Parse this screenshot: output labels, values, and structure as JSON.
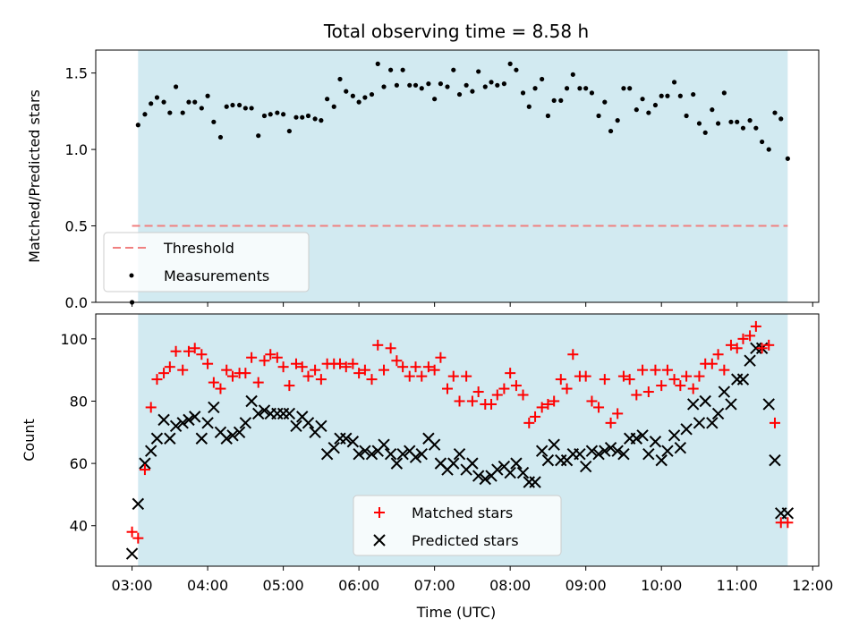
{
  "title": "Total observing time = 8.58 h",
  "colors": {
    "shade": "#add8e6",
    "threshold": "#f08080",
    "measurement": "#000000",
    "matched": "#ff0000",
    "predicted": "#000000"
  },
  "chart_data": [
    {
      "type": "scatter",
      "ylabel": "Matched/Predicted stars",
      "ylim": [
        0,
        1.65
      ],
      "yticks": [
        "0.0",
        "0.5",
        "1.0",
        "1.5"
      ],
      "xlim_hours": [
        2.52,
        12.08
      ],
      "shaded_span_hours": [
        3.08,
        11.67
      ],
      "legend": {
        "position": "lower-left",
        "entries": [
          "Threshold",
          "Measurements"
        ]
      },
      "threshold": {
        "name": "Threshold",
        "y": 0.5,
        "x_hours": [
          3.0,
          11.67
        ]
      },
      "series": [
        {
          "name": "Measurements",
          "x_hours": [
            3.0,
            3.08,
            3.17,
            3.25,
            3.33,
            3.42,
            3.5,
            3.58,
            3.67,
            3.75,
            3.83,
            3.92,
            4.0,
            4.08,
            4.17,
            4.25,
            4.33,
            4.42,
            4.5,
            4.58,
            4.67,
            4.75,
            4.83,
            4.92,
            5.0,
            5.08,
            5.17,
            5.25,
            5.33,
            5.42,
            5.5,
            5.58,
            5.67,
            5.75,
            5.83,
            5.92,
            6.0,
            6.08,
            6.17,
            6.25,
            6.33,
            6.42,
            6.5,
            6.58,
            6.67,
            6.75,
            6.83,
            6.92,
            7.0,
            7.08,
            7.17,
            7.25,
            7.33,
            7.42,
            7.5,
            7.58,
            7.67,
            7.75,
            7.83,
            7.92,
            8.0,
            8.08,
            8.17,
            8.25,
            8.33,
            8.42,
            8.5,
            8.58,
            8.67,
            8.75,
            8.83,
            8.92,
            9.0,
            9.08,
            9.17,
            9.25,
            9.33,
            9.42,
            9.5,
            9.58,
            9.67,
            9.75,
            9.83,
            9.92,
            10.0,
            10.08,
            10.17,
            10.25,
            10.33,
            10.42,
            10.5,
            10.58,
            10.67,
            10.75,
            10.83,
            10.92,
            11.0,
            11.08,
            11.17,
            11.25,
            11.33,
            11.42,
            11.5,
            11.58,
            11.67
          ],
          "y": [
            0.0,
            1.16,
            1.23,
            1.3,
            1.34,
            1.31,
            1.24,
            1.41,
            1.24,
            1.31,
            1.31,
            1.27,
            1.35,
            1.18,
            1.08,
            1.28,
            1.29,
            1.29,
            1.27,
            1.27,
            1.09,
            1.22,
            1.23,
            1.24,
            1.23,
            1.12,
            1.21,
            1.21,
            1.22,
            1.2,
            1.19,
            1.33,
            1.28,
            1.46,
            1.38,
            1.35,
            1.31,
            1.34,
            1.36,
            1.56,
            1.41,
            1.52,
            1.42,
            1.52,
            1.42,
            1.42,
            1.4,
            1.43,
            1.33,
            1.43,
            1.41,
            1.52,
            1.36,
            1.42,
            1.38,
            1.51,
            1.41,
            1.44,
            1.42,
            1.43,
            1.56,
            1.52,
            1.37,
            1.28,
            1.4,
            1.46,
            1.22,
            1.32,
            1.32,
            1.4,
            1.49,
            1.4,
            1.4,
            1.37,
            1.22,
            1.31,
            1.12,
            1.19,
            1.4,
            1.4,
            1.26,
            1.33,
            1.24,
            1.29,
            1.35,
            1.35,
            1.44,
            1.35,
            1.22,
            1.36,
            1.17,
            1.11,
            1.26,
            1.17,
            1.37,
            1.18,
            1.18,
            1.14,
            1.19,
            1.14,
            1.05,
            1.0,
            1.24,
            1.2,
            0.94
          ]
        }
      ]
    },
    {
      "type": "scatter",
      "ylabel": "Count",
      "xlabel": "Time (UTC)",
      "ylim": [
        27,
        108
      ],
      "yticks": [
        "40",
        "60",
        "80",
        "100"
      ],
      "xticks": [
        "03:00",
        "04:00",
        "05:00",
        "06:00",
        "07:00",
        "08:00",
        "09:00",
        "10:00",
        "11:00",
        "12:00"
      ],
      "xlim_hours": [
        2.52,
        12.08
      ],
      "shaded_span_hours": [
        3.08,
        11.67
      ],
      "legend": {
        "position": "lower-center",
        "entries": [
          "Matched stars",
          "Predicted stars"
        ]
      },
      "series": [
        {
          "name": "Matched stars",
          "marker": "+",
          "x_hours": [
            3.0,
            3.08,
            3.17,
            3.25,
            3.33,
            3.42,
            3.5,
            3.58,
            3.67,
            3.75,
            3.83,
            3.92,
            4.0,
            4.08,
            4.17,
            4.25,
            4.33,
            4.42,
            4.5,
            4.58,
            4.67,
            4.75,
            4.83,
            4.92,
            5.0,
            5.08,
            5.17,
            5.25,
            5.33,
            5.42,
            5.5,
            5.58,
            5.67,
            5.75,
            5.83,
            5.92,
            6.0,
            6.08,
            6.17,
            6.25,
            6.33,
            6.42,
            6.5,
            6.58,
            6.67,
            6.75,
            6.83,
            6.92,
            7.0,
            7.08,
            7.17,
            7.25,
            7.33,
            7.42,
            7.5,
            7.58,
            7.67,
            7.75,
            7.83,
            7.92,
            8.0,
            8.08,
            8.17,
            8.25,
            8.33,
            8.42,
            8.5,
            8.58,
            8.67,
            8.75,
            8.83,
            8.92,
            9.0,
            9.08,
            9.17,
            9.25,
            9.33,
            9.42,
            9.5,
            9.58,
            9.67,
            9.75,
            9.83,
            9.92,
            10.0,
            10.08,
            10.17,
            10.25,
            10.33,
            10.42,
            10.5,
            10.58,
            10.67,
            10.75,
            10.83,
            10.92,
            11.0,
            11.08,
            11.17,
            11.25,
            11.33,
            11.42,
            11.5,
            11.58,
            11.67
          ],
          "y": [
            38,
            36,
            58,
            78,
            87,
            89,
            91,
            96,
            90,
            96,
            97,
            95,
            92,
            86,
            84,
            90,
            88,
            89,
            89,
            94,
            86,
            93,
            95,
            94,
            91,
            85,
            92,
            91,
            88,
            90,
            87,
            92,
            92,
            92,
            91,
            92,
            89,
            90,
            87,
            98,
            90,
            97,
            93,
            91,
            88,
            91,
            88,
            91,
            90,
            94,
            84,
            88,
            80,
            88,
            80,
            83,
            79,
            79,
            82,
            84,
            89,
            85,
            82,
            73,
            75,
            78,
            79,
            80,
            87,
            84,
            95,
            88,
            88,
            80,
            78,
            87,
            73,
            76,
            88,
            87,
            82,
            90,
            83,
            90,
            85,
            90,
            87,
            85,
            88,
            84,
            88,
            92,
            92,
            95,
            90,
            98,
            97,
            100,
            101,
            104,
            97,
            98,
            73,
            41,
            41
          ],
          "note": ""
        },
        {
          "name": "Predicted stars",
          "marker": "x",
          "x_hours": [
            3.0,
            3.08,
            3.17,
            3.25,
            3.33,
            3.42,
            3.5,
            3.58,
            3.67,
            3.75,
            3.83,
            3.92,
            4.0,
            4.08,
            4.17,
            4.25,
            4.33,
            4.42,
            4.5,
            4.58,
            4.67,
            4.75,
            4.83,
            4.92,
            5.0,
            5.08,
            5.17,
            5.25,
            5.33,
            5.42,
            5.5,
            5.58,
            5.67,
            5.75,
            5.83,
            5.92,
            6.0,
            6.08,
            6.17,
            6.25,
            6.33,
            6.42,
            6.5,
            6.58,
            6.67,
            6.75,
            6.83,
            6.92,
            7.0,
            7.08,
            7.17,
            7.25,
            7.33,
            7.42,
            7.5,
            7.58,
            7.67,
            7.75,
            7.83,
            7.92,
            8.0,
            8.08,
            8.17,
            8.25,
            8.33,
            8.42,
            8.5,
            8.58,
            8.67,
            8.75,
            8.83,
            8.92,
            9.0,
            9.08,
            9.17,
            9.25,
            9.33,
            9.42,
            9.5,
            9.58,
            9.67,
            9.75,
            9.83,
            9.92,
            10.0,
            10.08,
            10.17,
            10.25,
            10.33,
            10.42,
            10.5,
            10.58,
            10.67,
            10.75,
            10.83,
            10.92,
            11.0,
            11.08,
            11.17,
            11.25,
            11.33,
            11.42,
            11.5,
            11.58,
            11.67
          ],
          "y": [
            31,
            47,
            60,
            64,
            68,
            74,
            68,
            72,
            73,
            74,
            75,
            68,
            73,
            78,
            70,
            68,
            69,
            70,
            73,
            80,
            76,
            77,
            76,
            76,
            76,
            76,
            72,
            75,
            73,
            70,
            72,
            63,
            65,
            68,
            68,
            67,
            63,
            64,
            63,
            64,
            66,
            63,
            60,
            63,
            64,
            62,
            63,
            68,
            66,
            60,
            58,
            60,
            63,
            58,
            60,
            56,
            55,
            56,
            58,
            59,
            57,
            60,
            57,
            54,
            54,
            64,
            61,
            66,
            61,
            61,
            63,
            63,
            59,
            64,
            63,
            64,
            65,
            64,
            63,
            68,
            68,
            69,
            63,
            67,
            61,
            64,
            69,
            65,
            71,
            79,
            73,
            80,
            73,
            76,
            83,
            79,
            87,
            87,
            93,
            97,
            97,
            79,
            61,
            44,
            44
          ]
        }
      ]
    }
  ]
}
